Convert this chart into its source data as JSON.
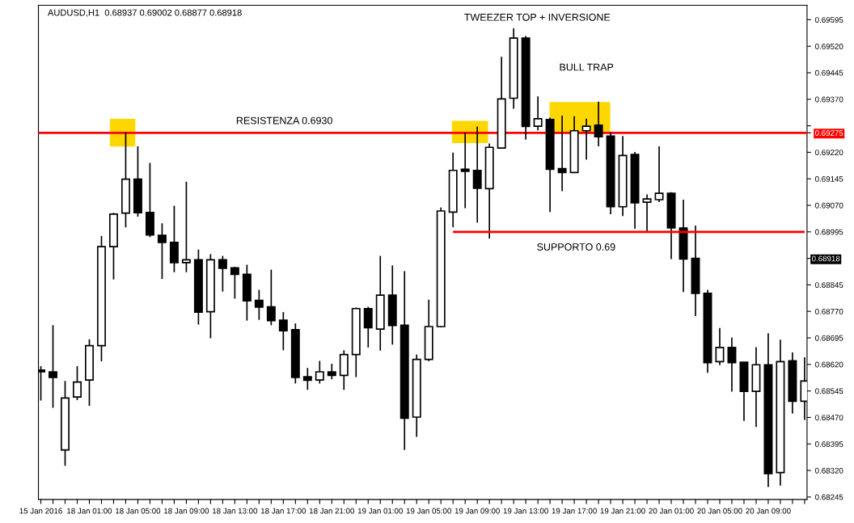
{
  "chart_data": {
    "type": "candlestick",
    "title": "AUDUSD,H1  0.68937 0.69002 0.68877 0.68918",
    "categories": [
      "15 Jan 2016",
      null,
      null,
      null,
      "18 Jan 01:00",
      null,
      null,
      null,
      "18 Jan 05:00",
      null,
      null,
      null,
      "18 Jan 09:00",
      null,
      null,
      null,
      "18 Jan 13:00",
      null,
      null,
      null,
      "18 Jan 17:00",
      null,
      null,
      null,
      "18 Jan 21:00",
      null,
      null,
      null,
      "19 Jan 01:00",
      null,
      null,
      null,
      "19 Jan 05:00",
      null,
      null,
      null,
      "19 Jan 09:00",
      null,
      null,
      null,
      "19 Jan 13:00",
      null,
      null,
      null,
      "19 Jan 17:00",
      null,
      null,
      null,
      "19 Jan 21:00",
      null,
      null,
      null,
      "20 Jan 01:00",
      null,
      null,
      null,
      "20 Jan 05:00",
      null,
      null,
      null,
      "20 Jan 09:00",
      null,
      null,
      null
    ],
    "ohlc": [
      [
        0.68604,
        0.68615,
        0.68518,
        0.68599
      ],
      [
        0.68599,
        0.68731,
        0.68497,
        0.68583
      ],
      [
        0.68378,
        0.68573,
        0.68333,
        0.68525
      ],
      [
        0.68528,
        0.68615,
        0.68519,
        0.6857
      ],
      [
        0.68576,
        0.68691,
        0.68503,
        0.68673
      ],
      [
        0.68673,
        0.68983,
        0.68629,
        0.68953
      ],
      [
        0.68953,
        0.69049,
        0.6886,
        0.69045
      ],
      [
        0.69048,
        0.69277,
        0.69008,
        0.69144
      ],
      [
        0.69144,
        0.69237,
        0.69038,
        0.69049
      ],
      [
        0.6905,
        0.6919,
        0.6898,
        0.68986
      ],
      [
        0.68985,
        0.69019,
        0.68862,
        0.68965
      ],
      [
        0.68965,
        0.69069,
        0.68881,
        0.68908
      ],
      [
        0.68908,
        0.69137,
        0.68881,
        0.68916
      ],
      [
        0.68916,
        0.68945,
        0.68733,
        0.68768
      ],
      [
        0.68769,
        0.68932,
        0.68694,
        0.68916
      ],
      [
        0.68916,
        0.68927,
        0.68826,
        0.68892
      ],
      [
        0.68893,
        0.68896,
        0.68806,
        0.68875
      ],
      [
        0.68875,
        0.68902,
        0.68744,
        0.688
      ],
      [
        0.68801,
        0.68831,
        0.68746,
        0.68782
      ],
      [
        0.68783,
        0.68888,
        0.68731,
        0.68744
      ],
      [
        0.68745,
        0.68768,
        0.6866,
        0.68715
      ],
      [
        0.68718,
        0.68736,
        0.68566,
        0.68583
      ],
      [
        0.68585,
        0.6861,
        0.68548,
        0.68575
      ],
      [
        0.68576,
        0.6863,
        0.68566,
        0.68599
      ],
      [
        0.68599,
        0.68622,
        0.68578,
        0.68589
      ],
      [
        0.68589,
        0.6866,
        0.68548,
        0.68648
      ],
      [
        0.68648,
        0.68781,
        0.68584,
        0.68778
      ],
      [
        0.68778,
        0.68783,
        0.68668,
        0.68724
      ],
      [
        0.6872,
        0.68927,
        0.68659,
        0.68816
      ],
      [
        0.68816,
        0.689,
        0.68676,
        0.6873
      ],
      [
        0.68731,
        0.68884,
        0.68378,
        0.68468
      ],
      [
        0.68471,
        0.68648,
        0.68415,
        0.68634
      ],
      [
        0.68634,
        0.68803,
        0.68629,
        0.68727
      ],
      [
        0.68727,
        0.69064,
        0.68725,
        0.69054
      ],
      [
        0.69051,
        0.69219,
        0.69008,
        0.69169
      ],
      [
        0.69172,
        0.69275,
        0.69062,
        0.69166
      ],
      [
        0.69169,
        0.69293,
        0.69021,
        0.69118
      ],
      [
        0.69117,
        0.69245,
        0.68976,
        0.69234
      ],
      [
        0.69232,
        0.6949,
        0.69232,
        0.69371
      ],
      [
        0.69373,
        0.69571,
        0.69343,
        0.69543
      ],
      [
        0.69543,
        0.69549,
        0.69256,
        0.69293
      ],
      [
        0.69294,
        0.69378,
        0.69282,
        0.69315
      ],
      [
        0.69313,
        0.69318,
        0.69051,
        0.69172
      ],
      [
        0.69174,
        0.69324,
        0.6911,
        0.69163
      ],
      [
        0.69163,
        0.69322,
        0.69161,
        0.69281
      ],
      [
        0.69281,
        0.69315,
        0.69199,
        0.69294
      ],
      [
        0.69297,
        0.69363,
        0.69237,
        0.69264
      ],
      [
        0.69266,
        0.69277,
        0.69045,
        0.69066
      ],
      [
        0.69066,
        0.69266,
        0.6904,
        0.69211
      ],
      [
        0.69214,
        0.69221,
        0.69004,
        0.69077
      ],
      [
        0.69079,
        0.69101,
        0.68995,
        0.69088
      ],
      [
        0.69086,
        0.69237,
        0.69079,
        0.69104
      ],
      [
        0.69104,
        0.69107,
        0.68918,
        0.69006
      ],
      [
        0.69006,
        0.69086,
        0.68825,
        0.68918
      ],
      [
        0.6892,
        0.69013,
        0.68757,
        0.68821
      ],
      [
        0.68821,
        0.68831,
        0.68596,
        0.68625
      ],
      [
        0.68628,
        0.68723,
        0.68618,
        0.68668
      ],
      [
        0.68668,
        0.68696,
        0.68543,
        0.68625
      ],
      [
        0.68626,
        0.68626,
        0.6846,
        0.68544
      ],
      [
        0.68544,
        0.68669,
        0.68443,
        0.68619
      ],
      [
        0.68619,
        0.68708,
        0.68273,
        0.68311
      ],
      [
        0.68314,
        0.6869,
        0.68277,
        0.68628
      ],
      [
        0.6863,
        0.68654,
        0.68481,
        0.68516
      ],
      [
        0.68516,
        0.6864,
        0.68463,
        0.68573
      ]
    ],
    "colors": [
      "#000000",
      "#000000",
      "#ffffff",
      "#ffffff",
      "#ffffff",
      "#ffffff",
      "#ffffff",
      "#ffffff",
      "#000000",
      "#000000",
      "#000000",
      "#000000",
      "#ffffff",
      "#000000",
      "#ffffff",
      "#000000",
      "#000000",
      "#000000",
      "#000000",
      "#000000",
      "#000000",
      "#000000",
      "#000000",
      "#ffffff",
      "#000000",
      "#ffffff",
      "#ffffff",
      "#000000",
      "#ffffff",
      "#000000",
      "#000000",
      "#ffffff",
      "#ffffff",
      "#ffffff",
      "#ffffff",
      "#000000",
      "#000000",
      "#ffffff",
      "#ffffff",
      "#ffffff",
      "#000000",
      "#ffffff",
      "#000000",
      "#000000",
      "#ffffff",
      "#ffffff",
      "#000000",
      "#000000",
      "#ffffff",
      "#000000",
      "#ffffff",
      "#ffffff",
      "#000000",
      "#000000",
      "#000000",
      "#000000",
      "#ffffff",
      "#000000",
      "#000000",
      "#ffffff",
      "#000000",
      "#ffffff",
      "#000000",
      "#ffffff"
    ],
    "series": [
      {
        "type": "line",
        "name": "SUPPORTO 0.69",
        "color": "#ff0000",
        "values": [
          null,
          null,
          null,
          null,
          null,
          null,
          null,
          null,
          null,
          null,
          null,
          null,
          null,
          null,
          null,
          null,
          null,
          null,
          null,
          null,
          null,
          null,
          null,
          null,
          null,
          null,
          null,
          null,
          null,
          null,
          null,
          null,
          null,
          null,
          0.68995,
          0.68995,
          0.68995,
          0.68995,
          0.68995,
          0.68995,
          0.68995,
          0.68995,
          0.68995,
          0.68995,
          0.68995,
          0.68995,
          0.68995,
          0.68995,
          0.68995,
          0.68995,
          0.68995,
          0.68995,
          0.68995,
          0.68995,
          0.68995,
          0.68995,
          0.68995,
          0.68995,
          0.68995,
          0.68995,
          0.68995,
          0.68995,
          0.68995,
          0.68995
        ]
      }
    ],
    "ref_lines": [
      {
        "axis": "y",
        "value": 0.69275,
        "label": "RESISTENZA 0.6930",
        "color": "#ff0000"
      }
    ],
    "annotations": [
      "TWEEZER TOP + INVERSIONE",
      "BULL TRAP",
      "0.68918"
    ],
    "ylim": [
      0.68238,
      0.69636
    ],
    "yticks": [
      0.69595,
      {
        "value": 0.6952,
        "label": "0.69520"
      },
      0.69445,
      {
        "value": 0.6937,
        "label": "0.69370"
      },
      {
        "value": 0.69295,
        "label": null
      },
      {
        "value": 0.69275,
        "label": "0.69275"
      },
      {
        "value": 0.6922,
        "label": "0.69220"
      },
      0.69145,
      {
        "value": 0.6907,
        "label": "0.69070"
      },
      0.68995,
      {
        "value": 0.6892,
        "label": null
      },
      0.68845,
      {
        "value": 0.6877,
        "label": "0.68770"
      },
      0.68695,
      {
        "value": 0.6862,
        "label": "0.68620"
      },
      0.68545,
      {
        "value": 0.6847,
        "label": "0.68470"
      },
      0.68395,
      {
        "value": 0.6832,
        "label": "0.68320"
      },
      0.68245
    ]
  }
}
